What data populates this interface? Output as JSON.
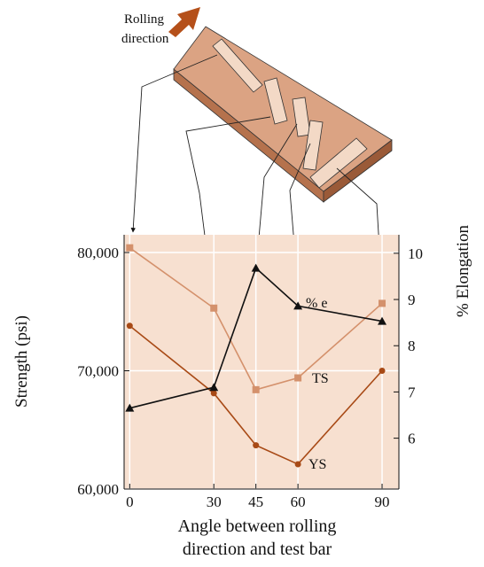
{
  "chart_data": {
    "type": "line",
    "illustration_label": [
      "Rolling",
      "direction"
    ],
    "ylabel": "Strength (psi)",
    "y2label": "% Elongation",
    "xlabel_lines": [
      "Angle between rolling",
      "direction and test bar"
    ],
    "x": [
      0,
      30,
      45,
      60,
      90
    ],
    "xlim": [
      -2,
      96
    ],
    "xticks": [
      0,
      30,
      45,
      60,
      90
    ],
    "ylim": [
      60000,
      81500
    ],
    "yticks": [
      {
        "value": 60000,
        "label": "60,000"
      },
      {
        "value": 70000,
        "label": "70,000"
      },
      {
        "value": 80000,
        "label": "80,000"
      }
    ],
    "y2lim": [
      4.9,
      10.4
    ],
    "y2ticks": [
      6,
      7,
      8,
      9,
      10
    ],
    "background": "#f7e0d0",
    "series": [
      {
        "name": "TS",
        "color": "#d4916c",
        "marker": "square",
        "values": [
          80400,
          75300,
          68400,
          69400,
          75700
        ]
      },
      {
        "name": "YS",
        "color": "#a84a16",
        "marker": "circle",
        "values": [
          73800,
          68100,
          63700,
          62100,
          70000
        ]
      },
      {
        "name": "% e",
        "color": "#111111",
        "marker": "triangle",
        "axis": "y2",
        "values": [
          6.65,
          7.1,
          9.68,
          8.86,
          8.53
        ]
      }
    ]
  }
}
